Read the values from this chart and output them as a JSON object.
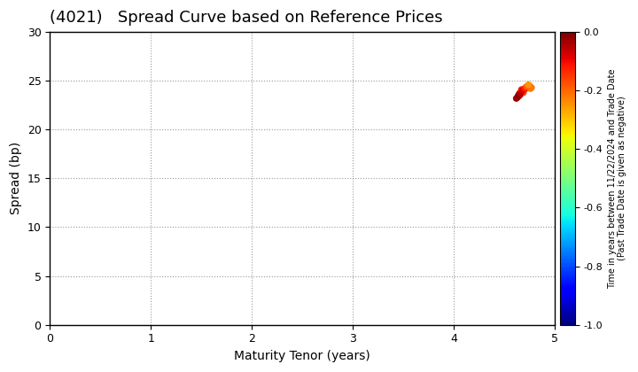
{
  "title": "(4021)   Spread Curve based on Reference Prices",
  "xlabel": "Maturity Tenor (years)",
  "ylabel": "Spread (bp)",
  "colorbar_label": "Time in years between 11/22/2024 and Trade Date\n(Past Trade Date is given as negative)",
  "xlim": [
    0,
    5
  ],
  "ylim": [
    0,
    30
  ],
  "xticks": [
    0,
    1,
    2,
    3,
    4,
    5
  ],
  "yticks": [
    0,
    5,
    10,
    15,
    20,
    25,
    30
  ],
  "clim": [
    -1.0,
    0.0
  ],
  "cticks": [
    0.0,
    -0.2,
    -0.4,
    -0.6,
    -0.8,
    -1.0
  ],
  "scatter_x": [
    4.65,
    4.67,
    4.69,
    4.71,
    4.73,
    4.75,
    4.77,
    4.62,
    4.64,
    4.66,
    4.68,
    4.7,
    4.72,
    4.74,
    4.76,
    4.63,
    4.65,
    4.67,
    4.69,
    4.64,
    4.66,
    4.68,
    4.7,
    4.72,
    4.74
  ],
  "scatter_y": [
    23.5,
    23.8,
    24.0,
    24.2,
    24.4,
    24.5,
    24.3,
    23.2,
    23.4,
    23.6,
    23.9,
    24.1,
    24.3,
    24.5,
    24.2,
    23.3,
    23.7,
    24.1,
    23.8,
    23.5,
    23.7,
    24.0,
    24.2,
    24.4,
    24.6
  ],
  "scatter_c": [
    -0.05,
    -0.08,
    -0.1,
    -0.12,
    -0.15,
    -0.18,
    -0.2,
    -0.02,
    -0.04,
    -0.06,
    -0.09,
    -0.11,
    -0.14,
    -0.17,
    -0.22,
    -0.03,
    -0.07,
    -0.13,
    -0.16,
    -0.01,
    -0.05,
    -0.08,
    -0.11,
    -0.19,
    -0.25
  ],
  "scatter_size": 30,
  "background_color": "#ffffff",
  "grid_color": "#999999",
  "title_fontsize": 13,
  "label_fontsize": 10,
  "tick_fontsize": 9,
  "colorbar_tick_fontsize": 8,
  "colorbar_label_fontsize": 7
}
